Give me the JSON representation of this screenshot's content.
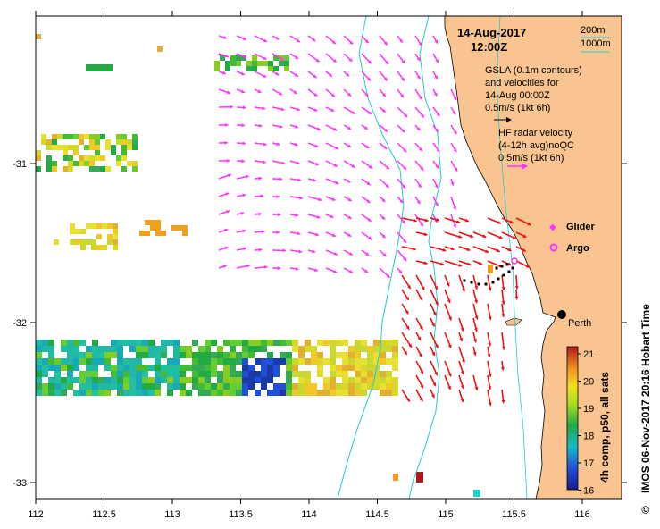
{
  "map": {
    "date": "14-Aug-2017",
    "time": "12:00Z",
    "depth_legend": [
      "200m",
      "1000m"
    ],
    "gsla_note": [
      "GSLA (0.1m contours)",
      "and velocities for",
      "14-Aug 00:00Z",
      "0.5m/s (1kt 6h)"
    ],
    "hf_note": [
      "HF radar velocity",
      "(4-12h avg)noQC",
      "0.5m/s (1kt 6h)"
    ],
    "glider_label": "Glider",
    "argo_label": "Argo",
    "city_label": "Perth",
    "credit": "IMOS 06-Nov-2017 20:16 Hobart Time",
    "copyright": "©",
    "x_ticks": [
      "112",
      "112.5",
      "113",
      "113.5",
      "114",
      "114.5",
      "115",
      "115.5",
      "116"
    ],
    "y_ticks": [
      "-31",
      "-32",
      "-33"
    ],
    "colors": {
      "land": "#f9c48f",
      "gsla_arrow": "#ff33ff",
      "hf_arrow": "#ee1111",
      "bathy": "#22cccc"
    }
  },
  "colorbar": {
    "title": "4h comp, p50, all sats",
    "ticks": [
      "21",
      "20",
      "19",
      "18",
      "17",
      "16"
    ]
  }
}
